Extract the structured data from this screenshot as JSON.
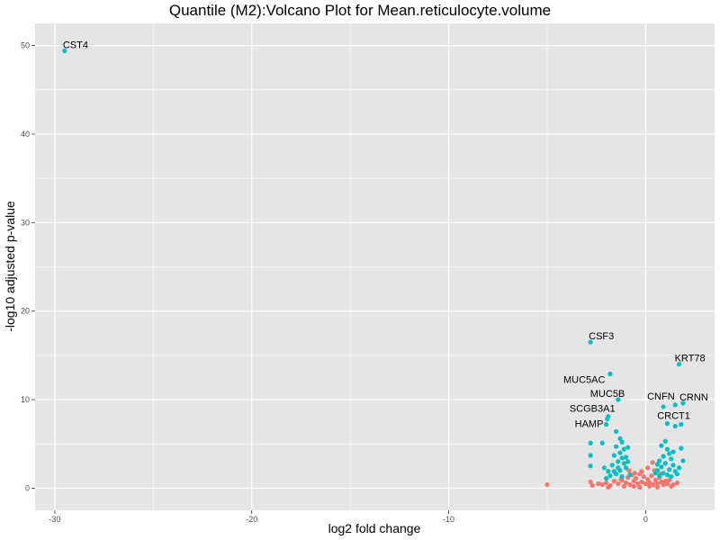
{
  "chart_data": {
    "type": "scatter",
    "title": "Quantile (M2):Volcano Plot for Mean.reticulocyte.volume",
    "xlabel": "log2 fold change",
    "ylabel": "-log10 adjusted p-value",
    "xlim": [
      -31,
      3.5
    ],
    "ylim": [
      -2.5,
      52.5
    ],
    "xticks": [
      -30,
      -20,
      -10,
      0
    ],
    "yticks": [
      0,
      10,
      20,
      30,
      40,
      50
    ],
    "grid": true,
    "legend": "none",
    "colors": {
      "significant": "#00BFC4",
      "not_significant": "#F8766D",
      "panel": "#E5E5E5",
      "grid": "#FFFFFF"
    },
    "series": [
      {
        "color": "#00BFC4",
        "points": [
          [
            -29.5,
            49.4
          ],
          [
            -2.8,
            16.5
          ],
          [
            1.7,
            14.0
          ],
          [
            -1.8,
            12.9
          ],
          [
            -1.4,
            10.0
          ],
          [
            1.5,
            9.4
          ],
          [
            1.9,
            9.6
          ],
          [
            0.9,
            9.2
          ],
          [
            -1.9,
            8.1
          ],
          [
            -1.95,
            7.8
          ],
          [
            -2.0,
            7.2
          ],
          [
            1.1,
            7.3
          ],
          [
            1.5,
            7.0
          ],
          [
            1.8,
            7.2
          ],
          [
            -2.8,
            5.1
          ],
          [
            -2.2,
            5.1
          ],
          [
            -2.8,
            3.7
          ],
          [
            -2.8,
            2.5
          ],
          [
            -1.5,
            6.4
          ],
          [
            -1.3,
            5.6
          ],
          [
            -1.2,
            5.2
          ],
          [
            -1.5,
            4.7
          ],
          [
            -1.1,
            4.4
          ],
          [
            -1.3,
            4.0
          ],
          [
            -1.6,
            3.7
          ],
          [
            -1.2,
            3.4
          ],
          [
            -1.4,
            3.0
          ],
          [
            -1.7,
            2.6
          ],
          [
            -1.1,
            2.8
          ],
          [
            -2.1,
            2.3
          ],
          [
            -1.9,
            1.9
          ],
          [
            -1.5,
            1.6
          ],
          [
            -1.3,
            2.0
          ],
          [
            -1.0,
            2.3
          ],
          [
            -0.9,
            3.0
          ],
          [
            -1.8,
            1.4
          ],
          [
            -1.2,
            1.3
          ],
          [
            -2.0,
            1.1
          ],
          [
            -0.8,
            1.5
          ],
          [
            -1.4,
            2.3
          ],
          [
            -1.6,
            1.9
          ],
          [
            -0.9,
            4.6
          ],
          [
            -1.0,
            3.5
          ],
          [
            1.0,
            5.3
          ],
          [
            0.8,
            4.8
          ],
          [
            1.1,
            4.4
          ],
          [
            1.2,
            3.9
          ],
          [
            0.9,
            3.6
          ],
          [
            1.3,
            3.3
          ],
          [
            0.7,
            3.1
          ],
          [
            1.0,
            2.8
          ],
          [
            1.4,
            2.6
          ],
          [
            0.8,
            2.4
          ],
          [
            1.2,
            2.1
          ],
          [
            0.6,
            2.0
          ],
          [
            1.5,
            1.9
          ],
          [
            0.9,
            1.7
          ],
          [
            1.1,
            1.5
          ],
          [
            0.7,
            1.4
          ],
          [
            1.3,
            1.3
          ],
          [
            1.8,
            4.5
          ],
          [
            1.7,
            2.3
          ],
          [
            1.6,
            1.6
          ],
          [
            0.5,
            1.7
          ],
          [
            1.9,
            3.1
          ],
          [
            1.4,
            4.1
          ],
          [
            0.6,
            2.7
          ]
        ]
      },
      {
        "color": "#F8766D",
        "points": [
          [
            -5.0,
            0.4
          ],
          [
            -2.8,
            0.7
          ],
          [
            -2.7,
            0.3
          ],
          [
            -2.4,
            0.5
          ],
          [
            -2.2,
            0.4
          ],
          [
            -2.0,
            0.6
          ],
          [
            -1.8,
            0.3
          ],
          [
            -1.6,
            0.8
          ],
          [
            -1.4,
            0.5
          ],
          [
            -1.2,
            0.9
          ],
          [
            -1.0,
            0.6
          ],
          [
            -0.9,
            1.2
          ],
          [
            -0.8,
            0.4
          ],
          [
            -0.7,
            1.5
          ],
          [
            -0.6,
            0.8
          ],
          [
            -0.5,
            1.1
          ],
          [
            -0.4,
            0.5
          ],
          [
            -0.3,
            1.6
          ],
          [
            -0.2,
            0.7
          ],
          [
            -0.1,
            1.3
          ],
          [
            0.0,
            0.5
          ],
          [
            0.1,
            1.0
          ],
          [
            0.2,
            0.6
          ],
          [
            0.3,
            1.4
          ],
          [
            0.4,
            0.4
          ],
          [
            0.5,
            0.9
          ],
          [
            0.6,
            0.5
          ],
          [
            0.7,
            1.2
          ],
          [
            0.8,
            0.7
          ],
          [
            0.9,
            0.4
          ],
          [
            1.0,
            0.8
          ],
          [
            1.1,
            0.5
          ],
          [
            1.2,
            0.9
          ],
          [
            1.4,
            0.4
          ],
          [
            1.6,
            0.6
          ],
          [
            -1.1,
            0.2
          ],
          [
            -0.6,
            0.2
          ],
          [
            0.2,
            0.2
          ],
          [
            0.6,
            0.1
          ],
          [
            -0.3,
            0.1
          ],
          [
            0.35,
            2.9
          ],
          [
            0.1,
            2.3
          ],
          [
            -0.2,
            1.9
          ],
          [
            0.45,
            2.0
          ],
          [
            -0.55,
            1.7
          ],
          [
            0.75,
            1.6
          ],
          [
            -0.85,
            2.0
          ],
          [
            -1.25,
            1.0
          ],
          [
            1.3,
            0.2
          ],
          [
            -1.9,
            0.1
          ]
        ]
      }
    ],
    "annotations": [
      {
        "label": "CST4",
        "x": -29.5,
        "y": 49.4,
        "dx": -2,
        "dy": -3
      },
      {
        "label": "CSF3",
        "x": -2.8,
        "y": 16.5,
        "dx": -2,
        "dy": -3
      },
      {
        "label": "KRT78",
        "x": 1.7,
        "y": 14.0,
        "dx": -5,
        "dy": -3
      },
      {
        "label": "MUC5AC",
        "x": -1.8,
        "y": 12.9,
        "dx": -52,
        "dy": 10
      },
      {
        "label": "MUC5B",
        "x": -1.4,
        "y": 10.0,
        "dx": -31,
        "dy": -3
      },
      {
        "label": "CNFN",
        "x": 0.9,
        "y": 9.2,
        "dx": -18,
        "dy": -8
      },
      {
        "label": "CRNN",
        "x": 1.9,
        "y": 9.6,
        "dx": -4,
        "dy": -3
      },
      {
        "label": "SCGB3A1",
        "x": -1.9,
        "y": 8.1,
        "dx": -43,
        "dy": -5
      },
      {
        "label": "CRCT1",
        "x": 1.5,
        "y": 7.0,
        "dx": -20,
        "dy": -8
      },
      {
        "label": "HAMP",
        "x": -2.0,
        "y": 7.2,
        "dx": -35,
        "dy": 3
      }
    ]
  }
}
